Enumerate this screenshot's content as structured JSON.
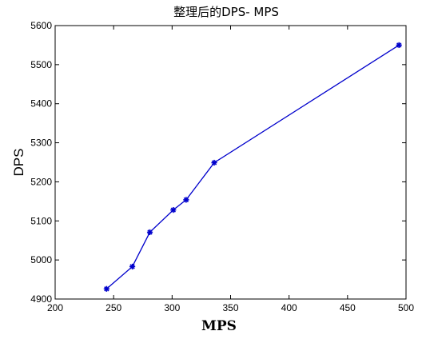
{
  "chart_data": {
    "type": "line",
    "title": "整理后的DPS- MPS",
    "xlabel": "MPS",
    "ylabel": "DPS",
    "xlim": [
      200,
      500
    ],
    "ylim": [
      4900,
      5600
    ],
    "x_ticks": [
      "200",
      "250",
      "300",
      "350",
      "400",
      "450",
      "500"
    ],
    "y_ticks": [
      "4900",
      "5000",
      "5100",
      "5200",
      "5300",
      "5400",
      "5500",
      "5600"
    ],
    "grid": false,
    "legend": "none",
    "series": [
      {
        "color": "#0000cc",
        "marker": "star",
        "points": [
          {
            "x": 244,
            "y": 4926
          },
          {
            "x": 266,
            "y": 4983
          },
          {
            "x": 281,
            "y": 5071
          },
          {
            "x": 301,
            "y": 5128
          },
          {
            "x": 312,
            "y": 5154
          },
          {
            "x": 336,
            "y": 5249
          },
          {
            "x": 494,
            "y": 5550
          }
        ]
      }
    ]
  }
}
